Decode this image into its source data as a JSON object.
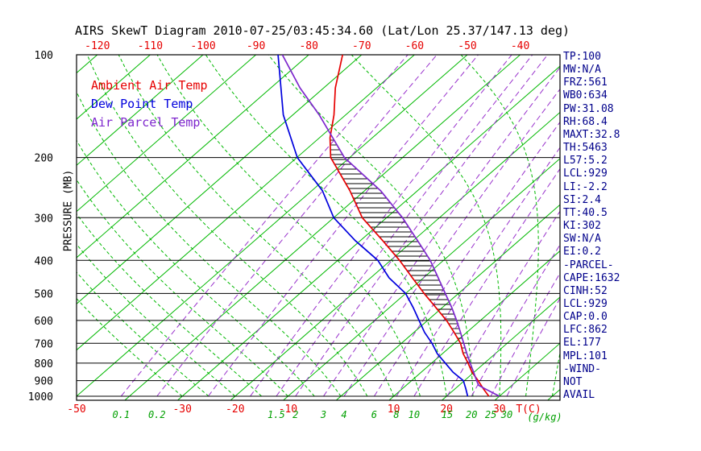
{
  "title": "AIRS SkewT Diagram 2010-07-25/03:45:34.60 (Lat/Lon 25.37/147.13 deg)",
  "legend": {
    "ambient": {
      "label": "Ambient Air Temp",
      "color": "#e60000"
    },
    "dewpoint": {
      "label": "Dew Point Temp",
      "color": "#0000dd"
    },
    "parcel": {
      "label": "Air Parcel Temp",
      "color": "#7d26cd"
    }
  },
  "axes": {
    "pressure_label": "PRESSURE (MB)",
    "pressure_ticks_mb": [
      100,
      200,
      300,
      400,
      500,
      600,
      700,
      800,
      900,
      1000
    ],
    "top_temperature_ticks_c": [
      -120,
      -110,
      -100,
      -90,
      -80,
      -70,
      -60,
      -50,
      -40
    ],
    "bottom_temperature_ticks_c": [
      -50,
      -30,
      -20,
      -10,
      10,
      20,
      30
    ],
    "temperature_unit_label": "T(C)",
    "mixing_ratio_ticks_gkg": [
      0.1,
      0.2,
      1.5,
      2,
      3,
      4,
      6,
      8,
      10,
      15,
      20,
      25,
      30
    ],
    "mixing_ratio_unit_label": "(g/kg)"
  },
  "indices_panel": [
    "TP:100",
    "MW:N/A",
    "FRZ:561",
    "WB0:634",
    "PW:31.08",
    "RH:68.4",
    "MAXT:32.8",
    "TH:5463",
    "L57:5.2",
    "LCL:929",
    "LI:-2.2",
    "SI:2.4",
    "TT:40.5",
    "KI:302",
    "SW:N/A",
    "EI:0.2",
    "-PARCEL-",
    "CAPE:1632",
    "CINH:52",
    "LCL:929",
    "CAP:0.0",
    "LFC:862",
    "EL:177",
    "MPL:101",
    "-WIND-",
    "NOT",
    "AVAIL"
  ],
  "colors": {
    "isotherm": "#00b800",
    "moist_adiabat": "#00b800",
    "mixing_ratio": "#9932cc",
    "pressure_line": "#000000",
    "frame": "#000000",
    "hatch": "#000000",
    "temp_tick": "#e60000",
    "mixing_tick": "#00a000",
    "pressure_tick": "#000000",
    "panel_text": "#00008b"
  },
  "chart_data": {
    "type": "line",
    "projection": "skew-t-log-p",
    "pressure_range_mb": [
      100,
      1000
    ],
    "temp_range_at_1000mb_c": [
      -50,
      41
    ],
    "isotherms_c": {
      "min": -120,
      "max": 40,
      "step": 10
    },
    "moist_adiabat_anchors_c": [
      -30,
      -25,
      -20,
      -15,
      -10,
      -5,
      0,
      5,
      10,
      15,
      20,
      25,
      30,
      35,
      40,
      45
    ],
    "mixing_ratio_lines_gkg": [
      0.1,
      0.2,
      0.5,
      1,
      1.5,
      2,
      3,
      4,
      6,
      8,
      10,
      15,
      20,
      25,
      30
    ],
    "cape_hatch_between_mb": [
      862,
      177
    ],
    "series": [
      {
        "name": "Ambient Air Temp",
        "color": "#e60000",
        "points_p_t": [
          [
            1000,
            28.0
          ],
          [
            950,
            25.3
          ],
          [
            900,
            22.6
          ],
          [
            850,
            19.6
          ],
          [
            800,
            16.9
          ],
          [
            750,
            13.9
          ],
          [
            700,
            11.2
          ],
          [
            650,
            7.6
          ],
          [
            600,
            3.6
          ],
          [
            550,
            -1.2
          ],
          [
            500,
            -6.5
          ],
          [
            450,
            -12.1
          ],
          [
            400,
            -18.3
          ],
          [
            350,
            -25.8
          ],
          [
            300,
            -34.6
          ],
          [
            250,
            -42.8
          ],
          [
            200,
            -53.6
          ],
          [
            175,
            -58.0
          ],
          [
            150,
            -62.2
          ],
          [
            125,
            -67.8
          ],
          [
            100,
            -73.6
          ]
        ]
      },
      {
        "name": "Dew Point Temp",
        "color": "#0000dd",
        "points_p_t": [
          [
            1000,
            24.0
          ],
          [
            950,
            22.0
          ],
          [
            900,
            19.8
          ],
          [
            850,
            16.0
          ],
          [
            800,
            12.6
          ],
          [
            750,
            9.0
          ],
          [
            700,
            5.8
          ],
          [
            650,
            2.0
          ],
          [
            600,
            -1.6
          ],
          [
            550,
            -5.5
          ],
          [
            500,
            -10.0
          ],
          [
            450,
            -16.5
          ],
          [
            400,
            -22.4
          ],
          [
            350,
            -31.0
          ],
          [
            300,
            -40.0
          ],
          [
            250,
            -48.0
          ],
          [
            200,
            -59.9
          ],
          [
            150,
            -71.8
          ],
          [
            100,
            -85.8
          ]
        ]
      },
      {
        "name": "Air Parcel Temp",
        "color": "#7d26cd",
        "points_p_t": [
          [
            1000,
            30.0
          ],
          [
            950,
            25.6
          ],
          [
            929,
            23.7
          ],
          [
            900,
            22.3
          ],
          [
            850,
            19.9
          ],
          [
            800,
            17.3
          ],
          [
            750,
            14.6
          ],
          [
            700,
            11.8
          ],
          [
            650,
            8.8
          ],
          [
            600,
            5.5
          ],
          [
            550,
            1.8
          ],
          [
            500,
            -2.5
          ],
          [
            450,
            -7.2
          ],
          [
            400,
            -12.5
          ],
          [
            350,
            -19.2
          ],
          [
            300,
            -27.0
          ],
          [
            250,
            -37.0
          ],
          [
            200,
            -51.0
          ],
          [
            175,
            -57.5
          ],
          [
            150,
            -65.0
          ],
          [
            125,
            -74.5
          ],
          [
            100,
            -85.0
          ]
        ]
      }
    ]
  }
}
